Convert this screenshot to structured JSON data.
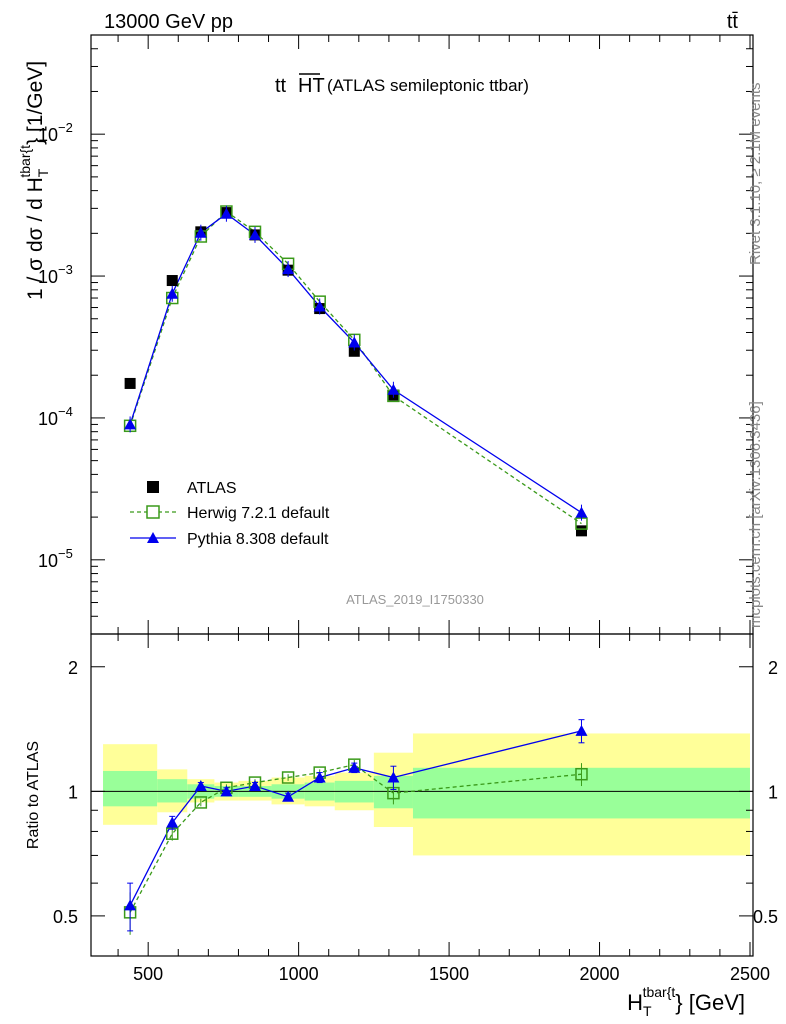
{
  "header": {
    "energy": "13000 GeV pp",
    "process": "tt̄"
  },
  "title_main": "tt",
  "title_over": "HT",
  "title_sub": "(ATLAS semileptonic ttbar)",
  "side_right_top": "Rivet 3.1.10, ≥ 2.1M events",
  "side_right_bottom": "mcplots.cern.ch [arXiv:1306.3436]",
  "analysis_tag": "ATLAS_2019_I1750330",
  "ylabel_main": {
    "pre": "1 / σ dσ / d H",
    "sub": "T",
    "sup": "tbar{t",
    "post": "} [1/GeV]"
  },
  "ylabel_ratio": "Ratio to ATLAS",
  "xlabel": {
    "pre": "H",
    "sub": "T",
    "sup": "tbar{t",
    "post": "} [GeV]"
  },
  "legend": {
    "data": "ATLAS",
    "herwig": "Herwig 7.2.1 default",
    "pythia": "Pythia 8.308 default"
  },
  "colors": {
    "data": "#000000",
    "herwig": "#3a9a1a",
    "pythia": "#0000ee",
    "band_inner": "#99ff99",
    "band_outer": "#ffff99"
  },
  "chart_data": {
    "type": "line",
    "x_range": [
      310,
      2510
    ],
    "x_ticks": [
      500,
      1000,
      1500,
      2000,
      2500
    ],
    "main": {
      "yscale": "log",
      "y_range": [
        3e-06,
        0.05
      ],
      "y_ticks": [
        {
          "value": 1e-05,
          "mant": "10",
          "exp": "−5"
        },
        {
          "value": 0.0001,
          "mant": "10",
          "exp": "−4"
        },
        {
          "value": 0.001,
          "mant": "10",
          "exp": "−3"
        },
        {
          "value": 0.01,
          "mant": "10",
          "exp": "−2"
        }
      ]
    },
    "ratio": {
      "yscale": "log",
      "y_range": [
        0.4,
        2.4
      ],
      "y_ticks": [
        {
          "value": 0.5,
          "label": "0.5"
        },
        {
          "value": 1,
          "label": "1"
        },
        {
          "value": 2,
          "label": "2"
        }
      ]
    },
    "bins": [
      {
        "lo": 350,
        "hi": 530,
        "inner": [
          0.92,
          1.12
        ],
        "outer": [
          0.83,
          1.3
        ]
      },
      {
        "lo": 530,
        "hi": 630,
        "inner": [
          0.94,
          1.07
        ],
        "outer": [
          0.89,
          1.13
        ]
      },
      {
        "lo": 630,
        "hi": 720,
        "inner": [
          0.96,
          1.04
        ],
        "outer": [
          0.94,
          1.07
        ]
      },
      {
        "lo": 720,
        "hi": 800,
        "inner": [
          0.97,
          1.03
        ],
        "outer": [
          0.95,
          1.05
        ]
      },
      {
        "lo": 800,
        "hi": 910,
        "inner": [
          0.97,
          1.03
        ],
        "outer": [
          0.95,
          1.06
        ]
      },
      {
        "lo": 910,
        "hi": 1020,
        "inner": [
          0.96,
          1.04
        ],
        "outer": [
          0.93,
          1.08
        ]
      },
      {
        "lo": 1020,
        "hi": 1120,
        "inner": [
          0.95,
          1.05
        ],
        "outer": [
          0.92,
          1.09
        ]
      },
      {
        "lo": 1120,
        "hi": 1250,
        "inner": [
          0.94,
          1.06
        ],
        "outer": [
          0.9,
          1.11
        ]
      },
      {
        "lo": 1250,
        "hi": 1380,
        "inner": [
          0.91,
          1.09
        ],
        "outer": [
          0.82,
          1.24
        ]
      },
      {
        "lo": 1380,
        "hi": 2500,
        "inner": [
          0.86,
          1.14
        ],
        "outer": [
          0.7,
          1.38
        ]
      }
    ],
    "series": [
      {
        "name": "ATLAS",
        "key": "data",
        "x": [
          440,
          580,
          675,
          760,
          855,
          965,
          1070,
          1185,
          1315,
          1940
        ],
        "y": [
          0.000175,
          0.00093,
          0.00205,
          0.0028,
          0.00195,
          0.0011,
          0.00059,
          0.000295,
          0.000145,
          1.6e-05
        ]
      },
      {
        "name": "Herwig 7.2.1 default",
        "key": "herwig",
        "x": [
          440,
          580,
          675,
          760,
          855,
          965,
          1070,
          1185,
          1315,
          1940
        ],
        "y": [
          8.8e-05,
          0.0007,
          0.0019,
          0.00285,
          0.00205,
          0.00122,
          0.00066,
          0.000355,
          0.000143,
          1.8e-05
        ],
        "ratio": [
          0.51,
          0.79,
          0.94,
          1.02,
          1.05,
          1.08,
          1.11,
          1.16,
          0.99,
          1.1
        ],
        "ratio_err": [
          0.06,
          0.03,
          0.02,
          0.02,
          0.02,
          0.02,
          0.02,
          0.03,
          0.06,
          0.07
        ]
      },
      {
        "name": "Pythia 8.308 default",
        "key": "pythia",
        "x": [
          440,
          580,
          675,
          760,
          855,
          965,
          1070,
          1185,
          1315,
          1940
        ],
        "y": [
          9e-05,
          0.00075,
          0.00202,
          0.00275,
          0.00195,
          0.00112,
          0.00061,
          0.00034,
          0.000158,
          2.15e-05
        ],
        "ratio": [
          0.53,
          0.84,
          1.03,
          1.0,
          1.03,
          0.97,
          1.08,
          1.14,
          1.08,
          1.4
        ],
        "ratio_err": [
          0.07,
          0.03,
          0.02,
          0.02,
          0.02,
          0.02,
          0.03,
          0.03,
          0.07,
          0.09
        ]
      }
    ]
  }
}
